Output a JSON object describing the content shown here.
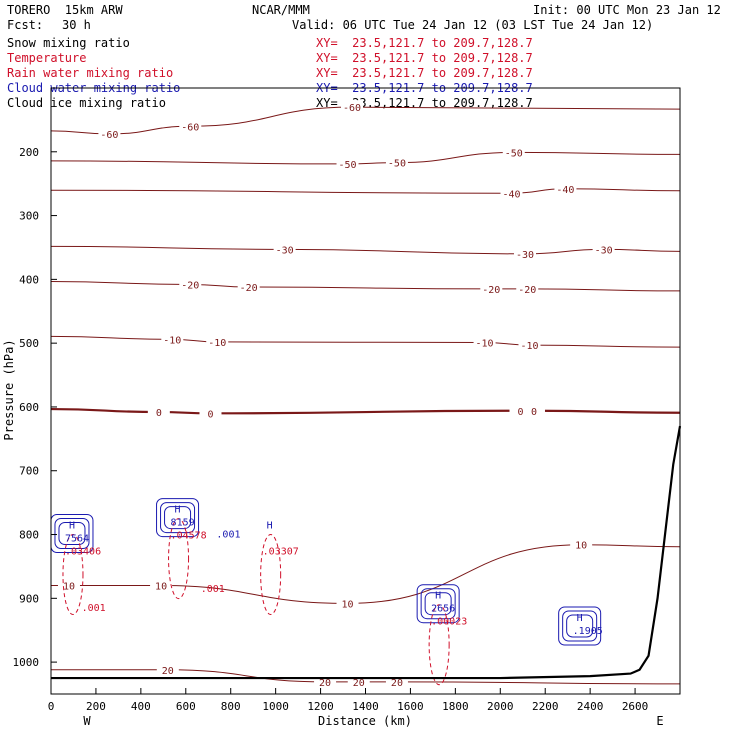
{
  "header": {
    "model": "TORERO  15km ARW",
    "center": "NCAR/MMM",
    "init": "Init: 00 UTC Mon 23 Jan 12",
    "fcst_label": "Fcst:",
    "fcst_value": "30 h",
    "valid": "Valid: 06 UTC Tue 24 Jan 12 (03 LST Tue 24 Jan 12)"
  },
  "fields": [
    {
      "name": "Snow mixing ratio",
      "xy": "XY=  23.5,121.7 to 209.7,128.7",
      "color": "#000000"
    },
    {
      "name": "Temperature",
      "xy": "XY=  23.5,121.7 to 209.7,128.7",
      "color": "#d0102a"
    },
    {
      "name": "Rain water mixing ratio",
      "xy": "XY=  23.5,121.7 to 209.7,128.7",
      "color": "#d0102a"
    },
    {
      "name": "Cloud water mixing ratio",
      "xy": "XY=  23.5,121.7 to 209.7,128.7",
      "color": "#1a1ab0"
    },
    {
      "name": "Cloud ice mixing ratio",
      "xy": "XY=  23.5,121.7 to 209.7,128.7",
      "color": "#000000"
    }
  ],
  "chart_data": {
    "type": "cross-section contour",
    "xlabel": "Distance (km)",
    "ylabel": "Pressure (hPa)",
    "xlim": [
      0,
      2800
    ],
    "ylim": [
      1050,
      100
    ],
    "xticks": [
      0,
      200,
      400,
      600,
      800,
      1000,
      1200,
      1400,
      1600,
      1800,
      2000,
      2200,
      2400,
      2600
    ],
    "yticks": [
      200,
      300,
      400,
      500,
      600,
      700,
      800,
      900,
      1000
    ],
    "x_ends": {
      "left": "W",
      "right": "E"
    },
    "temperature_contours": [
      {
        "value": -60,
        "labels": [
          {
            "x": 260,
            "p": 172
          },
          {
            "x": 620,
            "p": 160
          },
          {
            "x": 1340,
            "p": 130
          }
        ]
      },
      {
        "value": -50,
        "labels": [
          {
            "x": 1320,
            "p": 219
          },
          {
            "x": 1540,
            "p": 217
          },
          {
            "x": 2060,
            "p": 201
          }
        ]
      },
      {
        "value": -40,
        "labels": [
          {
            "x": 2050,
            "p": 265
          },
          {
            "x": 2290,
            "p": 258
          }
        ]
      },
      {
        "value": -30,
        "labels": [
          {
            "x": 1040,
            "p": 353
          },
          {
            "x": 2110,
            "p": 360
          },
          {
            "x": 2460,
            "p": 353
          }
        ]
      },
      {
        "value": -20,
        "labels": [
          {
            "x": 620,
            "p": 408
          },
          {
            "x": 880,
            "p": 412
          },
          {
            "x": 1960,
            "p": 415
          },
          {
            "x": 2120,
            "p": 415
          }
        ]
      },
      {
        "value": -10,
        "labels": [
          {
            "x": 540,
            "p": 494
          },
          {
            "x": 740,
            "p": 498
          },
          {
            "x": 1930,
            "p": 499
          },
          {
            "x": 2130,
            "p": 503
          }
        ]
      },
      {
        "value": 0,
        "labels": [
          {
            "x": 480,
            "p": 608
          },
          {
            "x": 710,
            "p": 610
          },
          {
            "x": 2090,
            "p": 606
          },
          {
            "x": 2150,
            "p": 606
          }
        ]
      },
      {
        "value": 10,
        "labels": [
          {
            "x": 80,
            "p": 880
          },
          {
            "x": 490,
            "p": 880
          },
          {
            "x": 1320,
            "p": 908
          },
          {
            "x": 2360,
            "p": 816
          }
        ]
      },
      {
        "value": 20,
        "labels": [
          {
            "x": 520,
            "p": 1012
          },
          {
            "x": 1220,
            "p": 1031
          },
          {
            "x": 1370,
            "p": 1031
          },
          {
            "x": 1540,
            "p": 1031
          }
        ]
      }
    ],
    "highs": [
      {
        "x": 80,
        "p": 800,
        "cloud_water": "7564",
        "rain_water": ".03406"
      },
      {
        "x": 550,
        "p": 775,
        "cloud_water": "8159",
        "rain_water": ".04578"
      },
      {
        "x": 960,
        "p": 800,
        "cloud_water": "",
        "rain_water": ".03307"
      },
      {
        "x": 1710,
        "p": 910,
        "cloud_water": "2656",
        "rain_water": ".00023"
      },
      {
        "x": 2340,
        "p": 945,
        "cloud_water": ".1905",
        "rain_water": ""
      }
    ],
    "rain_labels": [
      {
        "x": 190,
        "p": 920,
        "text": ".001"
      },
      {
        "x": 720,
        "p": 890,
        "text": ".001"
      }
    ],
    "cloud_water_labels": [
      {
        "x": 790,
        "p": 805,
        "text": ".001"
      }
    ],
    "surface_pressure": {
      "x": [
        0,
        400,
        1200,
        2000,
        2400,
        2580,
        2620,
        2660,
        2700,
        2740,
        2770,
        2800
      ],
      "p": [
        1025,
        1025,
        1025,
        1025,
        1022,
        1018,
        1012,
        990,
        900,
        780,
        690,
        630
      ]
    }
  }
}
